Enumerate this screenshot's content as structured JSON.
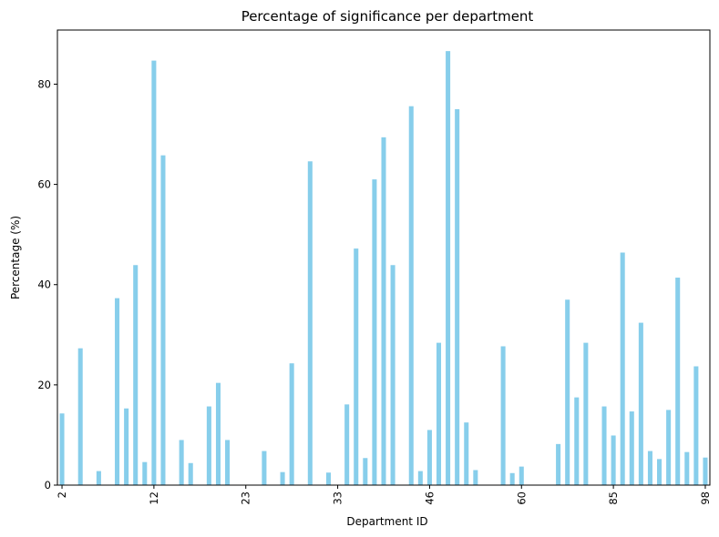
{
  "chart_data": {
    "type": "bar",
    "title": "Percentage of significance per department",
    "xlabel": "Department ID",
    "ylabel": "Percentage (%)",
    "ylim": [
      0,
      90.8
    ],
    "yticks": [
      0,
      20,
      40,
      60,
      80
    ],
    "xtick_labels": [
      "2",
      "12",
      "23",
      "33",
      "46",
      "60",
      "85",
      "98"
    ],
    "xtick_indices": [
      0,
      10,
      20,
      30,
      40,
      50,
      60,
      70
    ],
    "bar_color": "#87ceeb",
    "grid": false,
    "values": [
      14.3,
      0,
      27.3,
      0,
      2.8,
      0,
      37.3,
      15.3,
      43.9,
      4.6,
      84.7,
      65.8,
      0,
      9.0,
      4.4,
      0,
      15.7,
      20.4,
      9.0,
      0,
      0,
      0,
      6.8,
      0,
      2.6,
      24.3,
      0,
      64.6,
      0,
      2.5,
      0,
      16.1,
      47.2,
      5.4,
      61.0,
      69.4,
      43.9,
      0,
      75.6,
      2.8,
      11.0,
      28.4,
      86.6,
      75.0,
      12.5,
      3.0,
      0,
      0,
      27.7,
      2.4,
      3.7,
      0,
      0,
      0,
      8.2,
      37.0,
      17.5,
      28.4,
      0,
      15.7,
      9.9,
      46.4,
      14.7,
      32.4,
      6.8,
      5.2,
      15.0,
      41.4,
      6.6,
      23.7,
      5.5
    ]
  }
}
